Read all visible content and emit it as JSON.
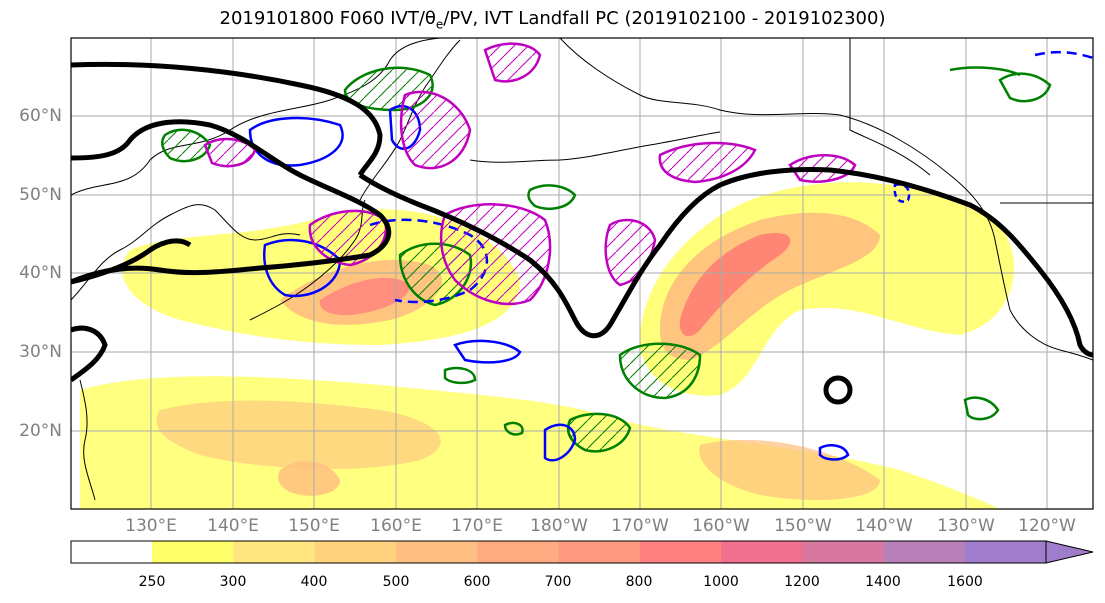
{
  "title": {
    "prefix": "2019101800 F060 IVT/θ",
    "sub": "e",
    "suffix": "/PV, IVT Landfall PC (2019102100 - 2019102300)"
  },
  "map": {
    "lat_labels": [
      "60°N",
      "50°N",
      "40°N",
      "30°N",
      "20°N"
    ],
    "lon_labels": [
      "130°E",
      "140°E",
      "150°E",
      "160°E",
      "170°E",
      "180°W",
      "170°W",
      "160°W",
      "150°W",
      "140°W",
      "130°W",
      "120°W"
    ],
    "colors": {
      "ivt_low": "#ffff66",
      "ivt_mid": "#ffbf80",
      "ivt_high": "#ff6666",
      "contour_black": "#000000",
      "contour_green": "#008000",
      "contour_blue": "#0000ff",
      "contour_magenta": "#c000c0"
    }
  },
  "colorbar": {
    "ticks": [
      "250",
      "300",
      "400",
      "500",
      "600",
      "700",
      "800",
      "1000",
      "1200",
      "1400",
      "1600"
    ],
    "colors": [
      "#ffff6a",
      "#ffe680",
      "#ffd280",
      "#ffbf80",
      "#ffaa80",
      "#ff9980",
      "#ff8080",
      "#f07090",
      "#d878a0",
      "#b880b8",
      "#a07ccc"
    ]
  }
}
